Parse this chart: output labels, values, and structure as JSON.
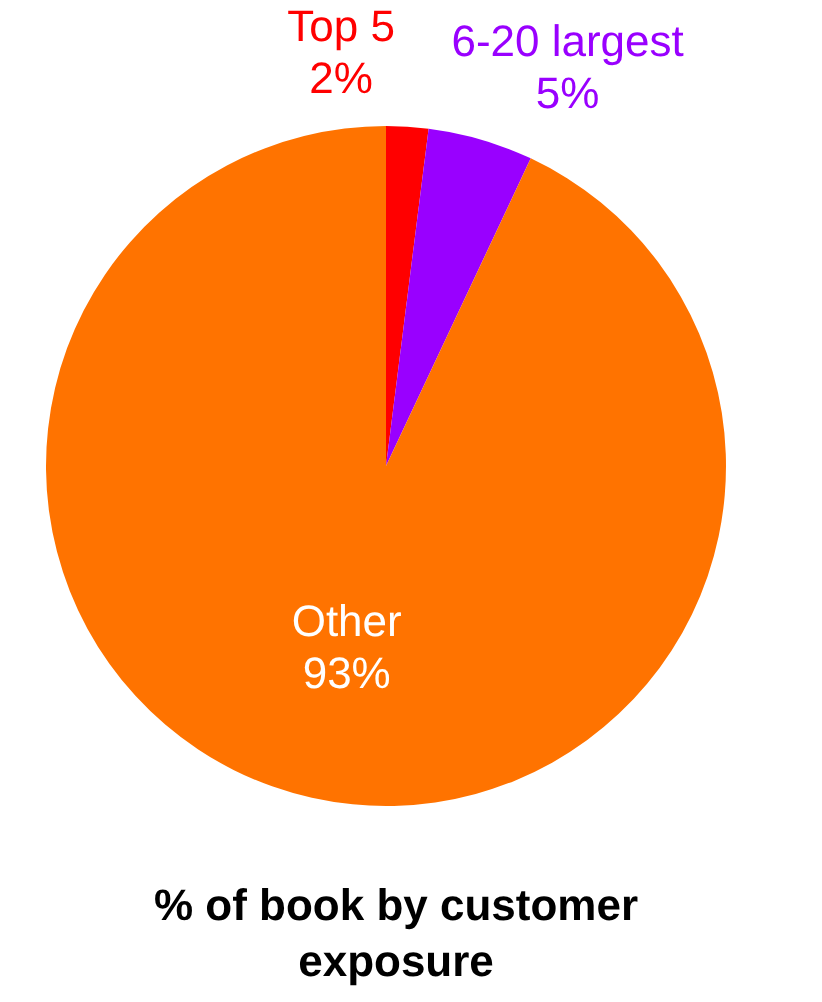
{
  "chart_data": {
    "type": "pie",
    "title": "% of book by customer exposure",
    "categories": [
      "Top 5",
      "6-20 largest",
      "Other"
    ],
    "values": [
      2,
      5,
      93
    ],
    "value_labels": [
      "2%",
      "5%",
      "93%"
    ],
    "colors": [
      "#ff0000",
      "#9900ff",
      "#ff7300"
    ]
  }
}
